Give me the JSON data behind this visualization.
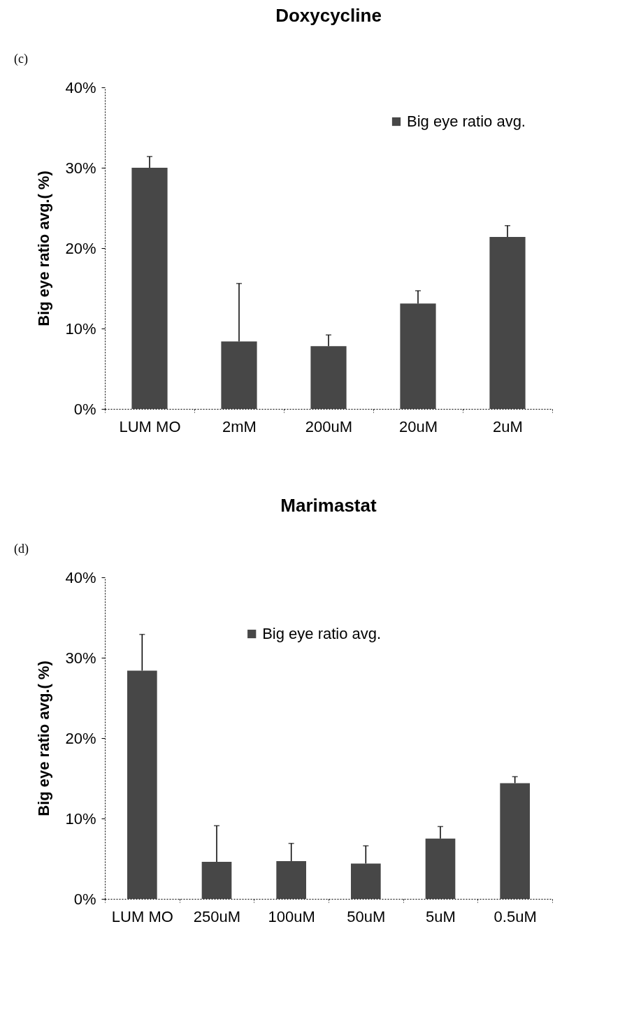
{
  "chart_data": [
    {
      "type": "bar",
      "title": "Doxycycline",
      "ylabel": "Big eye ratio avg.( %)",
      "annotations": [
        "(c)"
      ],
      "categories": [
        "LUM MO",
        "2mM",
        "200uM",
        "20uM",
        "2uM"
      ],
      "series": [
        {
          "name": "Big eye ratio avg.",
          "color": "#474747",
          "values": [
            30.0,
            8.4,
            7.8,
            13.1,
            21.4
          ],
          "errors": [
            [
              30.0,
              31.4
            ],
            [
              8.4,
              15.6
            ],
            [
              7.8,
              9.2
            ],
            [
              13.1,
              14.7
            ],
            [
              21.4,
              22.8
            ]
          ]
        }
      ],
      "ylim": [
        0,
        40
      ],
      "yticks": [
        {
          "value": 0,
          "label": "0%"
        },
        {
          "value": 10,
          "label": "10%"
        },
        {
          "value": 20,
          "label": "20%"
        },
        {
          "value": 30,
          "label": "30%"
        },
        {
          "value": 40,
          "label": "40%"
        }
      ],
      "grid": false,
      "legend": "top right"
    },
    {
      "type": "bar",
      "title": "Marimastat",
      "ylabel": "Big eye ratio avg.( %)",
      "annotations": [
        "(d)"
      ],
      "categories": [
        "LUM MO",
        "250uM",
        "100uM",
        "50uM",
        "5uM",
        "0.5uM"
      ],
      "series": [
        {
          "name": "Big eye ratio avg.",
          "color": "#474747",
          "values": [
            28.4,
            4.6,
            4.7,
            4.4,
            7.5,
            14.4
          ],
          "errors": [
            [
              28.4,
              32.9
            ],
            [
              4.6,
              9.1
            ],
            [
              4.7,
              6.9
            ],
            [
              4.4,
              6.6
            ],
            [
              7.5,
              9.0
            ],
            [
              14.4,
              15.2
            ]
          ]
        }
      ],
      "ylim": [
        0,
        40
      ],
      "yticks": [
        {
          "value": 0,
          "label": "0%"
        },
        {
          "value": 10,
          "label": "10%"
        },
        {
          "value": 20,
          "label": "20%"
        },
        {
          "value": 30,
          "label": "30%"
        },
        {
          "value": 40,
          "label": "40%"
        }
      ],
      "grid": false,
      "legend": "top"
    }
  ]
}
